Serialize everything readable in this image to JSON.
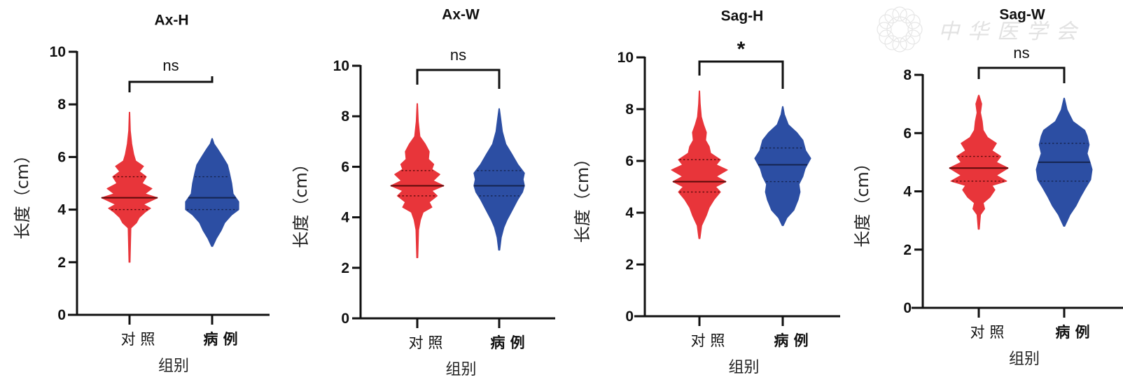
{
  "watermark": {
    "text": "中华医学会"
  },
  "colors": {
    "control": "#e8353a",
    "case": "#2c4ea3",
    "axis": "#111111",
    "median": "#5a0a0a",
    "median_case": "#15244f"
  },
  "chart_data": [
    {
      "type": "violin",
      "title": "Ax-H",
      "xlabel": "组别",
      "ylabel": "长度（cm）",
      "ylim": [
        0,
        10
      ],
      "yticks": [
        "0",
        "2",
        "4",
        "6",
        "8",
        "10"
      ],
      "categories": [
        "对 照",
        "病 例"
      ],
      "significance": "ns",
      "series": [
        {
          "name": "对 照",
          "min": 2.0,
          "max": 7.7,
          "q1": 4.0,
          "median": 4.45,
          "q3": 5.25,
          "profile": [
            [
              2.0,
              0.02
            ],
            [
              3.3,
              0.05
            ],
            [
              3.5,
              0.25
            ],
            [
              3.7,
              0.35
            ],
            [
              3.9,
              0.55
            ],
            [
              4.05,
              0.75
            ],
            [
              4.2,
              0.5
            ],
            [
              4.45,
              1.0
            ],
            [
              4.6,
              0.55
            ],
            [
              4.8,
              0.8
            ],
            [
              5.0,
              0.45
            ],
            [
              5.25,
              0.6
            ],
            [
              5.45,
              0.35
            ],
            [
              5.65,
              0.5
            ],
            [
              5.85,
              0.22
            ],
            [
              6.1,
              0.15
            ],
            [
              6.5,
              0.08
            ],
            [
              7.0,
              0.03
            ],
            [
              7.7,
              0.01
            ]
          ]
        },
        {
          "name": "病 例",
          "min": 2.6,
          "max": 6.7,
          "q1": 4.0,
          "median": 4.45,
          "q3": 5.25,
          "profile": [
            [
              2.6,
              0.02
            ],
            [
              2.9,
              0.15
            ],
            [
              3.2,
              0.32
            ],
            [
              3.5,
              0.45
            ],
            [
              3.8,
              0.7
            ],
            [
              4.0,
              0.95
            ],
            [
              4.3,
              0.95
            ],
            [
              4.6,
              0.75
            ],
            [
              5.0,
              0.7
            ],
            [
              5.4,
              0.62
            ],
            [
              5.7,
              0.55
            ],
            [
              6.0,
              0.38
            ],
            [
              6.3,
              0.2
            ],
            [
              6.5,
              0.07
            ],
            [
              6.7,
              0.01
            ]
          ]
        }
      ]
    },
    {
      "type": "violin",
      "title": "Ax-W",
      "xlabel": "组别",
      "ylabel": "长度（cm）",
      "ylim": [
        0,
        10
      ],
      "yticks": [
        "0",
        "2",
        "4",
        "6",
        "8",
        "10"
      ],
      "categories": [
        "对 照",
        "病 例"
      ],
      "significance": "ns",
      "series": [
        {
          "name": "对 照",
          "min": 2.4,
          "max": 8.5,
          "q1": 4.85,
          "median": 5.25,
          "q3": 5.85,
          "profile": [
            [
              2.4,
              0.02
            ],
            [
              3.5,
              0.05
            ],
            [
              3.9,
              0.12
            ],
            [
              4.2,
              0.22
            ],
            [
              4.4,
              0.55
            ],
            [
              4.6,
              0.45
            ],
            [
              4.85,
              0.75
            ],
            [
              5.05,
              0.55
            ],
            [
              5.25,
              1.0
            ],
            [
              5.45,
              0.6
            ],
            [
              5.7,
              0.85
            ],
            [
              5.9,
              0.55
            ],
            [
              6.1,
              0.62
            ],
            [
              6.3,
              0.42
            ],
            [
              6.6,
              0.45
            ],
            [
              6.9,
              0.3
            ],
            [
              7.2,
              0.1
            ],
            [
              7.8,
              0.04
            ],
            [
              8.5,
              0.01
            ]
          ]
        },
        {
          "name": "病 例",
          "min": 2.7,
          "max": 8.3,
          "q1": 4.85,
          "median": 5.25,
          "q3": 5.85,
          "profile": [
            [
              2.7,
              0.02
            ],
            [
              3.2,
              0.08
            ],
            [
              3.6,
              0.18
            ],
            [
              3.9,
              0.3
            ],
            [
              4.3,
              0.5
            ],
            [
              4.7,
              0.7
            ],
            [
              5.0,
              0.88
            ],
            [
              5.25,
              0.95
            ],
            [
              5.5,
              0.9
            ],
            [
              5.75,
              0.95
            ],
            [
              6.1,
              0.7
            ],
            [
              6.5,
              0.48
            ],
            [
              6.9,
              0.25
            ],
            [
              7.4,
              0.12
            ],
            [
              7.9,
              0.06
            ],
            [
              8.3,
              0.01
            ]
          ]
        }
      ]
    },
    {
      "type": "violin",
      "title": "Sag-H",
      "xlabel": "组别",
      "ylabel": "长度（cm）",
      "ylim": [
        0,
        10
      ],
      "yticks": [
        "0",
        "2",
        "4",
        "6",
        "8",
        "10"
      ],
      "categories": [
        "对 照",
        "病 例"
      ],
      "significance": "*",
      "series": [
        {
          "name": "对 照",
          "min": 3.0,
          "max": 8.7,
          "q1": 4.8,
          "median": 5.2,
          "q3": 6.05,
          "profile": [
            [
              3.0,
              0.02
            ],
            [
              3.5,
              0.08
            ],
            [
              3.9,
              0.25
            ],
            [
              4.2,
              0.35
            ],
            [
              4.5,
              0.52
            ],
            [
              4.8,
              0.75
            ],
            [
              5.0,
              0.58
            ],
            [
              5.2,
              0.95
            ],
            [
              5.4,
              0.6
            ],
            [
              5.65,
              1.0
            ],
            [
              5.85,
              0.6
            ],
            [
              6.05,
              0.75
            ],
            [
              6.3,
              0.4
            ],
            [
              6.55,
              0.35
            ],
            [
              6.8,
              0.22
            ],
            [
              7.1,
              0.25
            ],
            [
              7.4,
              0.15
            ],
            [
              7.7,
              0.07
            ],
            [
              8.2,
              0.03
            ],
            [
              8.7,
              0.01
            ]
          ]
        },
        {
          "name": "病 例",
          "min": 3.5,
          "max": 8.1,
          "q1": 5.2,
          "median": 5.85,
          "q3": 6.5,
          "profile": [
            [
              3.5,
              0.02
            ],
            [
              3.8,
              0.15
            ],
            [
              4.1,
              0.4
            ],
            [
              4.5,
              0.55
            ],
            [
              4.8,
              0.62
            ],
            [
              5.1,
              0.58
            ],
            [
              5.4,
              0.72
            ],
            [
              5.7,
              0.8
            ],
            [
              6.1,
              1.0
            ],
            [
              6.4,
              0.82
            ],
            [
              6.8,
              0.72
            ],
            [
              7.1,
              0.5
            ],
            [
              7.4,
              0.2
            ],
            [
              7.8,
              0.06
            ],
            [
              8.1,
              0.01
            ]
          ]
        }
      ]
    },
    {
      "type": "violin",
      "title": "Sag-W",
      "xlabel": "组别",
      "ylabel": "长度（cm）",
      "ylim": [
        0,
        8
      ],
      "yticks": [
        "0",
        "2",
        "4",
        "6",
        "8"
      ],
      "categories": [
        "对 照",
        "病 例"
      ],
      "significance": "ns",
      "series": [
        {
          "name": "对 照",
          "min": 2.7,
          "max": 7.3,
          "q1": 4.35,
          "median": 4.8,
          "q3": 5.2,
          "profile": [
            [
              2.7,
              0.02
            ],
            [
              3.2,
              0.06
            ],
            [
              3.4,
              0.2
            ],
            [
              3.6,
              0.15
            ],
            [
              3.8,
              0.38
            ],
            [
              4.05,
              0.55
            ],
            [
              4.2,
              0.45
            ],
            [
              4.35,
              0.95
            ],
            [
              4.55,
              0.6
            ],
            [
              4.8,
              1.0
            ],
            [
              5.0,
              0.6
            ],
            [
              5.2,
              0.75
            ],
            [
              5.4,
              0.45
            ],
            [
              5.65,
              0.6
            ],
            [
              5.85,
              0.3
            ],
            [
              6.1,
              0.15
            ],
            [
              6.4,
              0.12
            ],
            [
              6.7,
              0.06
            ],
            [
              7.0,
              0.1
            ],
            [
              7.3,
              0.01
            ]
          ]
        },
        {
          "name": "病 例",
          "min": 2.8,
          "max": 7.2,
          "q1": 4.35,
          "median": 5.0,
          "q3": 5.65,
          "profile": [
            [
              2.8,
              0.02
            ],
            [
              3.2,
              0.2
            ],
            [
              3.5,
              0.4
            ],
            [
              3.8,
              0.55
            ],
            [
              4.1,
              0.72
            ],
            [
              4.4,
              0.9
            ],
            [
              4.75,
              0.95
            ],
            [
              5.0,
              0.88
            ],
            [
              5.3,
              0.78
            ],
            [
              5.6,
              0.85
            ],
            [
              5.9,
              0.78
            ],
            [
              6.1,
              0.7
            ],
            [
              6.4,
              0.3
            ],
            [
              6.8,
              0.1
            ],
            [
              7.2,
              0.01
            ]
          ]
        }
      ]
    }
  ]
}
